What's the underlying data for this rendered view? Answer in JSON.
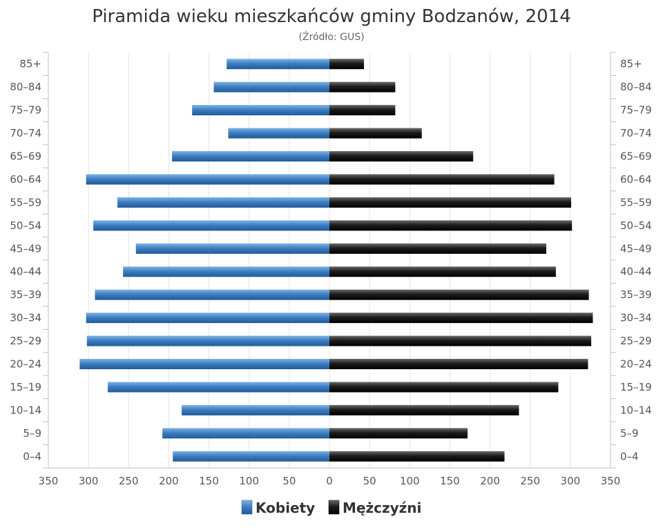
{
  "chart_data": {
    "type": "bar",
    "orientation": "horizontal-population-pyramid",
    "title": "Piramida wieku mieszkańców gminy Bodzanów, 2014",
    "subtitle": "(Źródło: GUS)",
    "categories": [
      "0–4",
      "5–9",
      "10–14",
      "15–19",
      "20–24",
      "25–29",
      "30–34",
      "35–39",
      "40–44",
      "45–49",
      "50–54",
      "55–59",
      "60–64",
      "65–69",
      "70–74",
      "75–79",
      "80–84",
      "85+"
    ],
    "series": [
      {
        "name": "Kobiety",
        "color": "#3f7fc2",
        "values": [
          195,
          208,
          184,
          276,
          311,
          302,
          303,
          292,
          257,
          241,
          294,
          264,
          303,
          196,
          126,
          171,
          144,
          128
        ]
      },
      {
        "name": "Mężczyźni",
        "color": "#1a1a1a",
        "values": [
          218,
          172,
          236,
          285,
          322,
          326,
          328,
          323,
          282,
          270,
          302,
          301,
          280,
          179,
          115,
          82,
          82,
          43
        ]
      }
    ],
    "xaxis": {
      "min": -350,
      "max": 350,
      "ticks": [
        -350,
        -300,
        -250,
        -200,
        -150,
        -100,
        -50,
        0,
        50,
        100,
        150,
        200,
        250,
        300,
        350
      ],
      "tick_labels": [
        "350",
        "300",
        "250",
        "200",
        "150",
        "100",
        "50",
        "0",
        "50",
        "100",
        "150",
        "200",
        "250",
        "300",
        "350"
      ]
    },
    "grid": true,
    "legend_position": "bottom-center"
  }
}
